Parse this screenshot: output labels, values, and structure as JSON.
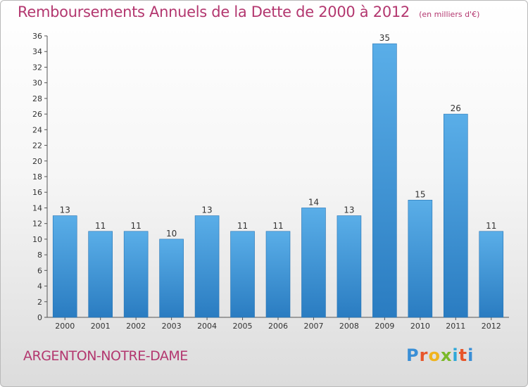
{
  "header": {
    "title": "Remboursements Annuels de la Dette de 2000 à 2012",
    "unit": "(en milliers d'€)"
  },
  "footer": {
    "commune": "ARGENTON-NOTRE-DAME",
    "brand": "Proxiti",
    "brand_colors": [
      "#3a8fd6",
      "#e8562a",
      "#f0b41e",
      "#7ab929",
      "#2fa8d8",
      "#e8562a",
      "#3a8fd6"
    ]
  },
  "chart_data": {
    "type": "bar",
    "title": "Remboursements Annuels de la Dette de 2000 à 2012",
    "subtitle": "(en milliers d'€)",
    "xlabel": "",
    "ylabel": "",
    "categories": [
      "2000",
      "2001",
      "2002",
      "2003",
      "2004",
      "2005",
      "2006",
      "2007",
      "2008",
      "2009",
      "2010",
      "2011",
      "2012"
    ],
    "values": [
      13,
      11,
      11,
      10,
      13,
      11,
      11,
      14,
      13,
      35,
      15,
      26,
      11
    ],
    "ylim": [
      0,
      36
    ],
    "ytick_step": 2,
    "grid": false,
    "bar_color_top": "#5aaee8",
    "bar_color_bottom": "#2a7cc1"
  }
}
